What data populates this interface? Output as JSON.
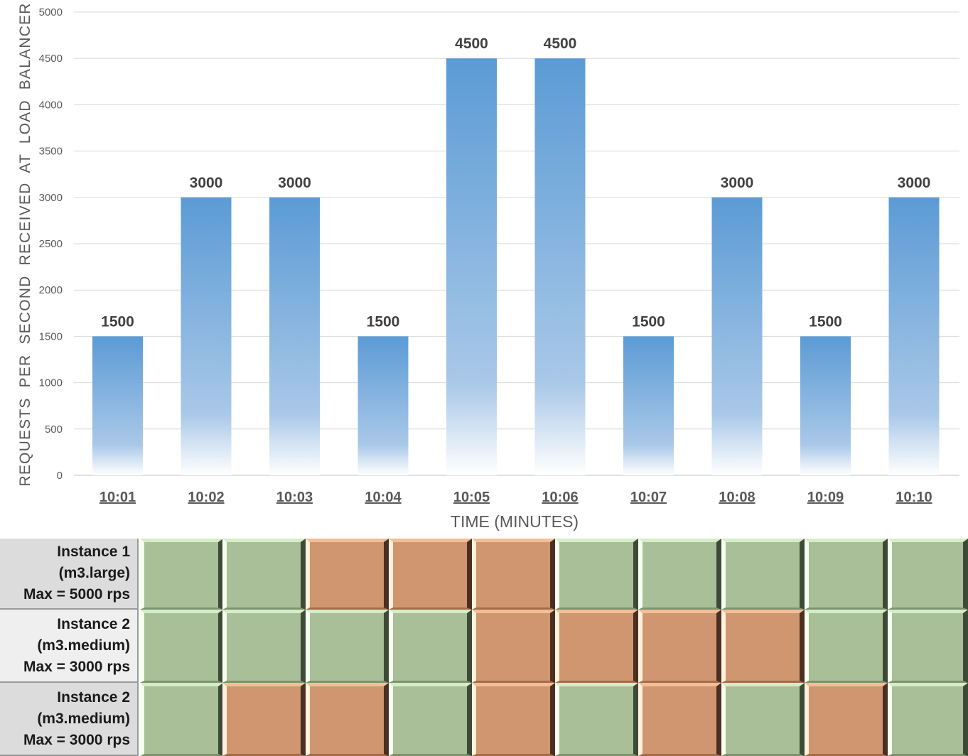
{
  "chart_data": {
    "type": "bar",
    "categories": [
      "10:01",
      "10:02",
      "10:03",
      "10:04",
      "10:05",
      "10:06",
      "10:07",
      "10:08",
      "10:09",
      "10:10"
    ],
    "values": [
      1500,
      3000,
      3000,
      1500,
      4500,
      4500,
      1500,
      3000,
      1500,
      3000
    ],
    "data_labels": [
      "1500",
      "3000",
      "3000",
      "1500",
      "4500",
      "4500",
      "1500",
      "3000",
      "1500",
      "3000"
    ],
    "xlabel": "TIME (MINUTES)",
    "ylabel": "REQUESTS PER SECOND RECEIVED AT LOAD BALANCER",
    "ylim": [
      0,
      5000
    ],
    "yticks": [
      "0",
      "500",
      "1000",
      "1500",
      "2000",
      "2500",
      "3000",
      "3500",
      "4000",
      "4500",
      "5000"
    ],
    "grid": true,
    "legend": "none"
  },
  "colors": {
    "bar": "#5b9bd5",
    "gridline": "#d9d9d9",
    "axis_text": "#595959",
    "label_text": "#404040",
    "cell_ok": "#a9bf98",
    "cell_busy": "#d09670"
  },
  "instances": [
    {
      "lines": [
        "Instance 1",
        "(m3.large)",
        "Max = 5000 rps"
      ],
      "states": [
        "ok",
        "ok",
        "busy",
        "busy",
        "busy",
        "ok",
        "ok",
        "ok",
        "ok",
        "ok"
      ]
    },
    {
      "lines": [
        "Instance 2",
        "(m3.medium)",
        "Max = 3000 rps"
      ],
      "states": [
        "ok",
        "ok",
        "ok",
        "ok",
        "busy",
        "busy",
        "busy",
        "busy",
        "ok",
        "ok"
      ]
    },
    {
      "lines": [
        "Instance 2",
        "(m3.medium)",
        "Max = 3000 rps"
      ],
      "states": [
        "ok",
        "busy",
        "busy",
        "ok",
        "busy",
        "ok",
        "busy",
        "ok",
        "busy",
        "ok"
      ]
    }
  ]
}
